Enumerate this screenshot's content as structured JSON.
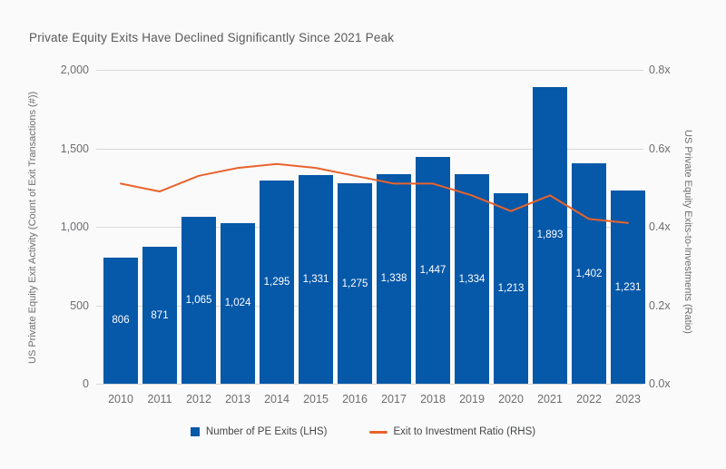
{
  "title": "Private Equity Exits Have Declined Significantly Since 2021 Peak",
  "colors": {
    "bar": "#0658a8",
    "line": "#e8632c",
    "grid": "#d8d8d8",
    "background": "#fafafa",
    "title_text": "#58595b",
    "axis_text": "#6d6e71",
    "bar_label_text": "#ffffff"
  },
  "legend": {
    "bar_label": "Number of PE Exits (LHS)",
    "line_label": "Exit to Investment Ratio (RHS)"
  },
  "chart_data": {
    "type": "bar",
    "title": "Private Equity Exits Have Declined Significantly Since 2021 Peak",
    "categories": [
      "2010",
      "2011",
      "2012",
      "2013",
      "2014",
      "2015",
      "2016",
      "2017",
      "2018",
      "2019",
      "2020",
      "2021",
      "2022",
      "2023"
    ],
    "series": [
      {
        "name": "Number of PE Exits (LHS)",
        "type": "bar",
        "axis": "left",
        "values": [
          806,
          871,
          1065,
          1024,
          1295,
          1331,
          1275,
          1338,
          1447,
          1334,
          1213,
          1893,
          1402,
          1231
        ],
        "labels": [
          "806",
          "871",
          "1,065",
          "1,024",
          "1,295",
          "1,331",
          "1,275",
          "1,338",
          "1,447",
          "1,334",
          "1,213",
          "1,893",
          "1,402",
          "1,231"
        ]
      },
      {
        "name": "Exit to Investment Ratio (RHS)",
        "type": "line",
        "axis": "right",
        "values": [
          0.51,
          0.49,
          0.53,
          0.55,
          0.56,
          0.55,
          0.53,
          0.51,
          0.51,
          0.48,
          0.44,
          0.48,
          0.42,
          0.41
        ]
      }
    ],
    "xlabel": "",
    "ylabel_left": "US Private Equity Exit Activity (Count of Exit Transactions (#))",
    "ylabel_right": "US Private Equity Exits-to-Investments (Ratio)",
    "yticks_left": [
      "2,000",
      "1,500",
      "1,000",
      "500",
      "0"
    ],
    "yticks_right": [
      "0.8x",
      "0.6x",
      "0.4x",
      "0.2x",
      "0.0x"
    ],
    "ylim_left": [
      0,
      2000
    ],
    "ylim_right": [
      0,
      0.8
    ],
    "grid": true,
    "legend_position": "bottom"
  }
}
